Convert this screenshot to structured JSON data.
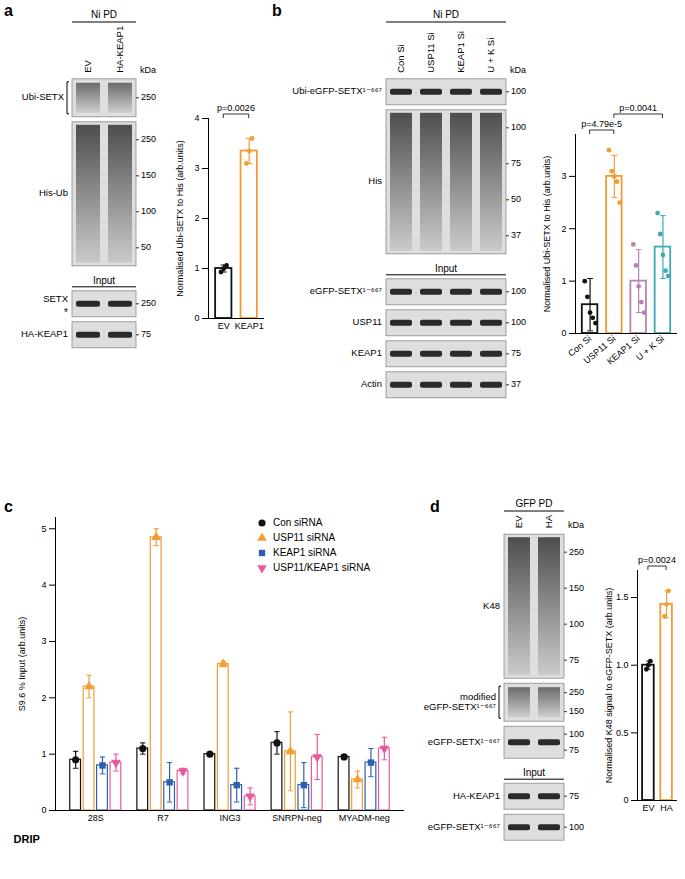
{
  "chart_data": [
    {
      "panel_label": "a",
      "type": "bar",
      "categories": [
        "EV",
        "KEAP1"
      ],
      "values": [
        1.0,
        3.35
      ],
      "errors": [
        0.07,
        0.25
      ],
      "points": [
        [
          0.93,
          1.0,
          1.06
        ],
        [
          3.1,
          3.35,
          3.6
        ]
      ],
      "colors": [
        "#111111",
        "#f39c33"
      ],
      "y_label": "Normalised Ubi-SETX to His (arb.units)",
      "ylim": [
        0,
        4
      ],
      "yticks": [
        0,
        1,
        2,
        3,
        4
      ],
      "comparisons": [
        {
          "from": "EV",
          "to": "KEAP1",
          "label": "p=0.0026"
        }
      ],
      "blot": {
        "header": "Ni PD",
        "lanes": [
          "EV",
          "HA-KEAP1"
        ],
        "kda_title": "kDa",
        "pulldown_rows": [
          {
            "label": "Ubi-SETX",
            "bracket": true,
            "kda": [
              250
            ]
          },
          {
            "label": "His-Ub",
            "kda": [
              250,
              150,
              100,
              50
            ]
          }
        ],
        "input_title": "Input",
        "input_rows": [
          {
            "label": "SETX",
            "side_mark": "*",
            "kda": [
              250
            ]
          },
          {
            "label": "HA-KEAP1",
            "kda": [
              75
            ]
          }
        ]
      }
    },
    {
      "panel_label": "b",
      "type": "bar",
      "categories": [
        "Con Si",
        "USP11 Si",
        "KEAP1 Si",
        "U + K Si"
      ],
      "values": [
        0.55,
        3.0,
        1.0,
        1.65
      ],
      "errors": [
        0.5,
        0.4,
        0.6,
        0.6
      ],
      "points": [
        [
          1.0,
          0.7,
          0.4,
          0.3,
          0.2
        ],
        [
          3.5,
          3.1,
          3.0,
          2.9,
          2.5
        ],
        [
          1.7,
          1.3,
          0.9,
          0.6,
          0.4
        ],
        [
          2.3,
          1.9,
          1.5,
          1.2,
          1.1
        ]
      ],
      "colors": [
        "#111111",
        "#f39c33",
        "#b784b0",
        "#3fa7b5"
      ],
      "y_label": "Normalised Ubi-SETX to His (arb.units)",
      "ylim": [
        0,
        3.8
      ],
      "yticks": [
        0,
        1,
        2,
        3
      ],
      "comparisons": [
        {
          "from": "Con Si",
          "to": "USP11 Si",
          "label": "p=4.79e-5"
        },
        {
          "from": "USP11 Si",
          "to": "U + K Si",
          "label": "p=0.0041"
        }
      ],
      "blot": {
        "header": "Ni PD",
        "lanes": [
          "Con Si",
          "USP11 Si",
          "KEAP1 Si",
          "U + K Si"
        ],
        "kda_title": "kDa",
        "pulldown_rows": [
          {
            "label": "Ubi-eGFP-SETX¹⁻⁶⁶⁷",
            "kda": [
              100
            ]
          },
          {
            "label": "His",
            "kda": [
              100,
              75,
              50,
              37
            ]
          }
        ],
        "input_title": "Input",
        "input_rows": [
          {
            "label": "eGFP-SETX¹⁻⁶⁶⁷",
            "kda": [
              100
            ]
          },
          {
            "label": "USP11",
            "kda": [
              100
            ]
          },
          {
            "label": "KEAP1",
            "kda": [
              75
            ]
          },
          {
            "label": "Actin",
            "kda": [
              37
            ]
          }
        ]
      }
    },
    {
      "panel_label": "c",
      "type": "bar",
      "categories": [
        "28S",
        "R7",
        "ING3",
        "SNRPN-neg",
        "MYADM-neg"
      ],
      "x_label": "DRIP",
      "y_label": "S9.6 % Input (arb.units)",
      "ylim": [
        0,
        5.2
      ],
      "yticks": [
        0,
        1,
        2,
        3,
        4,
        5
      ],
      "legend": "top-right",
      "series": [
        {
          "name": "Con siRNA",
          "color": "#111111",
          "marker": "circle",
          "values": [
            0.9,
            1.1,
            1.0,
            1.2,
            0.95
          ],
          "errors": [
            0.15,
            0.1,
            0.03,
            0.2,
            0.03
          ]
        },
        {
          "name": "USP11 siRNA",
          "color": "#f39c33",
          "marker": "triangle",
          "values": [
            2.2,
            4.85,
            2.6,
            1.05,
            0.55
          ],
          "errors": [
            0.2,
            0.15,
            0.05,
            0.7,
            0.15
          ]
        },
        {
          "name": "KEAP1 siRNA",
          "color": "#2e5fb0",
          "marker": "square",
          "values": [
            0.8,
            0.5,
            0.45,
            0.45,
            0.85
          ],
          "errors": [
            0.15,
            0.35,
            0.3,
            0.4,
            0.25
          ]
        },
        {
          "name": "USP11/KEAP1 siRNA",
          "color": "#e85a9c",
          "marker": "triangle-down",
          "values": [
            0.85,
            0.7,
            0.25,
            0.95,
            1.1
          ],
          "errors": [
            0.15,
            0.05,
            0.15,
            0.4,
            0.2
          ]
        }
      ]
    },
    {
      "panel_label": "d",
      "type": "bar",
      "categories": [
        "EV",
        "HA"
      ],
      "values": [
        1.0,
        1.45
      ],
      "errors": [
        0.03,
        0.1
      ],
      "points": [
        [
          0.97,
          1.0,
          1.03
        ],
        [
          1.36,
          1.45,
          1.55
        ]
      ],
      "colors": [
        "#111111",
        "#f39c33"
      ],
      "y_label": "Normalised K48 signal to eGFP-SETX (arb.units)",
      "ylim": [
        0,
        1.7
      ],
      "yticks": [
        0,
        0.5,
        {
          "value": 1,
          "label": "1.0"
        },
        1.5
      ],
      "comparisons": [
        {
          "from": "EV",
          "to": "HA",
          "label": "p=0.0024"
        }
      ],
      "blot": {
        "header": "GFP PD",
        "lanes": [
          "EV",
          "HA"
        ],
        "kda_title": "kDa",
        "pulldown_rows": [
          {
            "label": "K48",
            "kda": [
              250,
              150,
              100,
              75
            ]
          },
          {
            "label": "modified eGFP-SETX¹⁻⁶⁶⁷",
            "bracket": true,
            "kda": [
              250,
              150
            ]
          },
          {
            "label": "eGFP-SETX¹⁻⁶⁶⁷",
            "kda": [
              100,
              75
            ]
          }
        ],
        "input_title": "Input",
        "input_rows": [
          {
            "label": "HA-KEAP1",
            "kda": [
              75
            ]
          },
          {
            "label": "eGFP-SETX¹⁻⁶⁶⁷",
            "kda": [
              100
            ]
          }
        ]
      }
    }
  ]
}
